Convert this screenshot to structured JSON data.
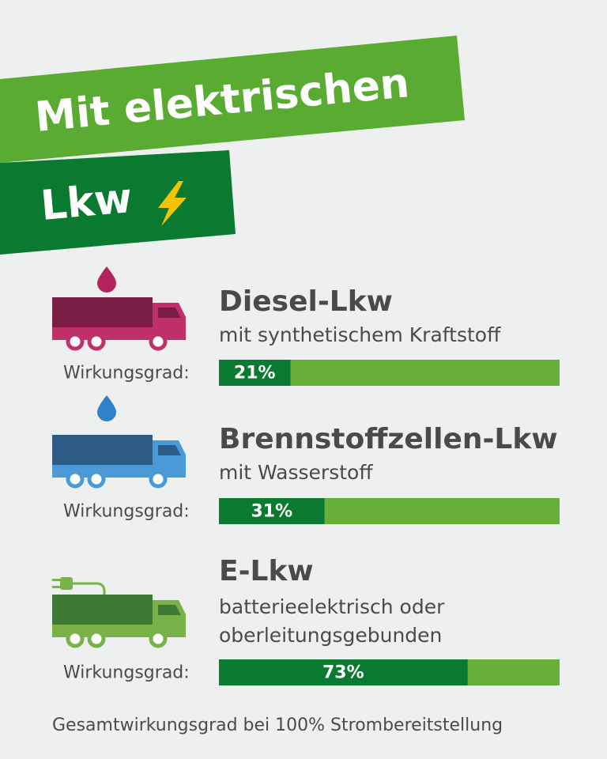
{
  "chart_data": {
    "type": "bar",
    "orientation": "horizontal",
    "title_lines": [
      "Mit elektrischen",
      "Lkw"
    ],
    "categories": [
      "Diesel-Lkw",
      "Brennstoffzellen-Lkw",
      "E-Lkw"
    ],
    "descriptions": [
      [
        "mit synthetischem Kraftstoff"
      ],
      [
        "mit Wasserstoff"
      ],
      [
        "batterieelektrisch oder",
        "oberleitungsgebunden"
      ]
    ],
    "bar_label": "Wirkungsgrad:",
    "values": [
      21,
      31,
      73
    ],
    "value_labels": [
      "21%",
      "31%",
      "73%"
    ],
    "xlim": [
      0,
      100
    ],
    "color": "#0a7a30",
    "track_color": "#66b03a",
    "footnote": "Gesamtwirkungsgrad bei 100% Strombereitstellung"
  }
}
